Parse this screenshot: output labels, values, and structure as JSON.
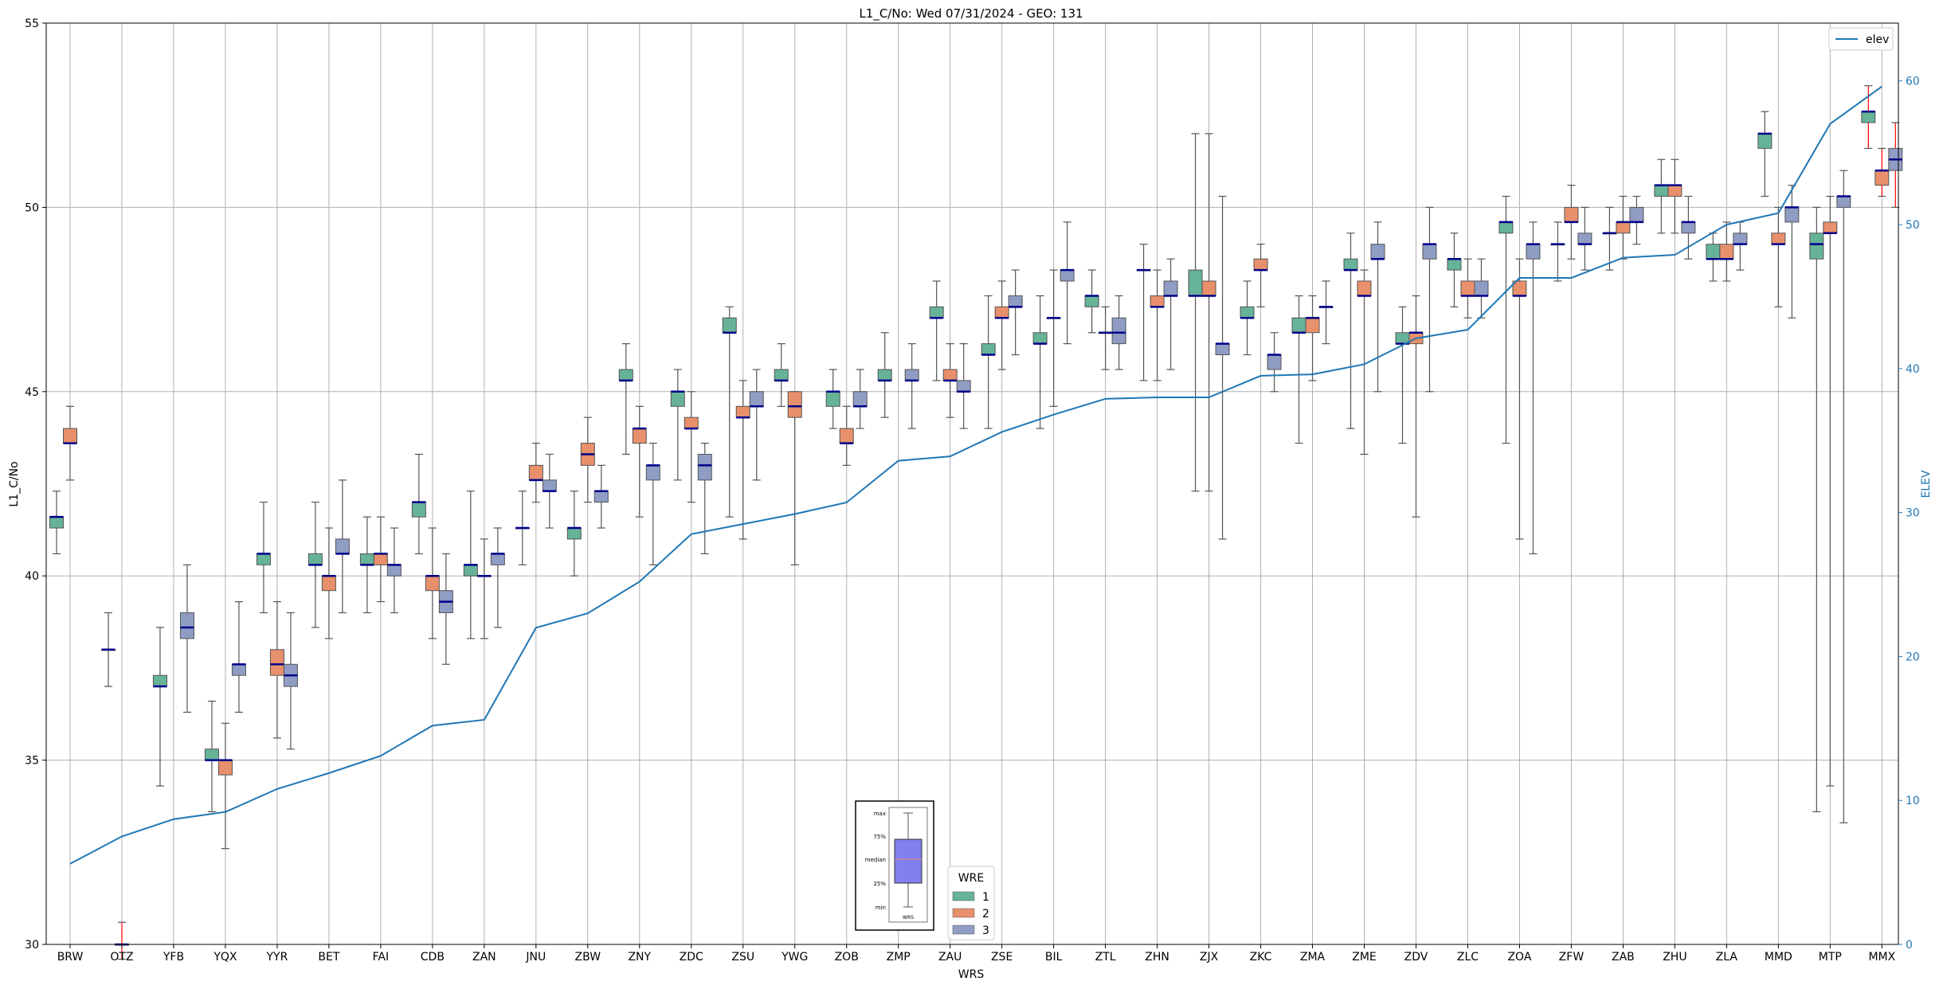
{
  "chart_data": {
    "type": "box",
    "title": "L1_C/No: Wed 07/31/2024 - GEO: 131",
    "xlabel": "WRS",
    "ylabel": "L1_C/No",
    "y2label": "ELEV",
    "ylim": [
      30,
      55
    ],
    "y2lim": [
      0,
      64
    ],
    "yticks": [
      30,
      35,
      40,
      45,
      50,
      55
    ],
    "y2ticks": [
      0,
      10,
      20,
      30,
      40,
      50,
      60
    ],
    "grid": true,
    "categories": [
      "BRW",
      "OTZ",
      "YFB",
      "YQX",
      "YYR",
      "BET",
      "FAI",
      "CDB",
      "ZAN",
      "JNU",
      "ZBW",
      "ZNY",
      "ZDC",
      "ZSU",
      "YWG",
      "ZOB",
      "ZMP",
      "ZAU",
      "ZSE",
      "BIL",
      "ZTL",
      "ZHN",
      "ZJX",
      "ZKC",
      "ZMA",
      "ZME",
      "ZDV",
      "ZLC",
      "ZOA",
      "ZFW",
      "ZAB",
      "ZHU",
      "ZLA",
      "MMD",
      "MTP",
      "MMX"
    ],
    "colors": {
      "wre1": "#66b398",
      "wre2": "#e8906b",
      "wre3": "#8f9cc4",
      "elev": "#1f77b4",
      "median": "#00008b",
      "whisker": "#555555",
      "outlier_whisker": "#ff0000"
    },
    "line_series": {
      "name": "elev",
      "values": [
        5.6,
        7.5,
        8.7,
        9.2,
        10.8,
        11.9,
        13.1,
        15.2,
        15.6,
        22.0,
        23.0,
        25.2,
        28.5,
        29.2,
        29.9,
        30.7,
        33.6,
        33.9,
        35.6,
        36.8,
        37.9,
        38.0,
        38.0,
        39.5,
        39.6,
        40.3,
        42.1,
        42.7,
        46.3,
        46.3,
        47.7,
        47.9,
        50.0,
        50.8,
        57.0,
        59.6
      ]
    },
    "legend_elev": {
      "label": "elev",
      "position": "top-right"
    },
    "legend_wre": {
      "title": "WRE",
      "items": [
        "1",
        "2",
        "3"
      ],
      "position": "bottom-center"
    },
    "box_key": {
      "labels": [
        "max",
        "75%",
        "median",
        "25%",
        "min"
      ],
      "xlabel": "WRS"
    },
    "boxes": [
      {
        "wrs": "BRW",
        "wre": 1,
        "min": 40.6,
        "q1": 41.3,
        "med": 41.6,
        "q3": 41.6,
        "max": 42.3
      },
      {
        "wrs": "BRW",
        "wre": 2,
        "min": 42.6,
        "q1": 43.6,
        "med": 43.6,
        "q3": 44.0,
        "max": 44.6
      },
      {
        "wrs": "OTZ",
        "wre": 1,
        "min": 37.0,
        "q1": 38.0,
        "med": 38.0,
        "q3": 38.0,
        "max": 39.0
      },
      {
        "wrs": "OTZ",
        "wre": 2,
        "min": 29.6,
        "q1": 30.0,
        "med": 30.0,
        "q3": 30.0,
        "max": 30.6,
        "red": true
      },
      {
        "wrs": "YFB",
        "wre": 1,
        "min": 34.3,
        "q1": 37.0,
        "med": 37.0,
        "q3": 37.3,
        "max": 38.6
      },
      {
        "wrs": "YFB",
        "wre": 3,
        "min": 36.3,
        "q1": 38.3,
        "med": 38.6,
        "q3": 39.0,
        "max": 40.3
      },
      {
        "wrs": "YQX",
        "wre": 1,
        "min": 33.6,
        "q1": 35.0,
        "med": 35.0,
        "q3": 35.3,
        "max": 36.6
      },
      {
        "wrs": "YQX",
        "wre": 2,
        "min": 32.6,
        "q1": 34.6,
        "med": 35.0,
        "q3": 35.0,
        "max": 36.0
      },
      {
        "wrs": "YQX",
        "wre": 3,
        "min": 36.3,
        "q1": 37.3,
        "med": 37.6,
        "q3": 37.6,
        "max": 39.3
      },
      {
        "wrs": "YYR",
        "wre": 1,
        "min": 39.0,
        "q1": 40.3,
        "med": 40.6,
        "q3": 40.6,
        "max": 42.0
      },
      {
        "wrs": "YYR",
        "wre": 2,
        "min": 35.6,
        "q1": 37.3,
        "med": 37.6,
        "q3": 38.0,
        "max": 39.3
      },
      {
        "wrs": "YYR",
        "wre": 3,
        "min": 35.3,
        "q1": 37.0,
        "med": 37.3,
        "q3": 37.6,
        "max": 39.0
      },
      {
        "wrs": "BET",
        "wre": 1,
        "min": 38.6,
        "q1": 40.3,
        "med": 40.3,
        "q3": 40.6,
        "max": 42.0
      },
      {
        "wrs": "BET",
        "wre": 2,
        "min": 38.3,
        "q1": 39.6,
        "med": 40.0,
        "q3": 40.0,
        "max": 41.3
      },
      {
        "wrs": "BET",
        "wre": 3,
        "min": 39.0,
        "q1": 40.6,
        "med": 40.6,
        "q3": 41.0,
        "max": 42.6
      },
      {
        "wrs": "FAI",
        "wre": 1,
        "min": 39.0,
        "q1": 40.3,
        "med": 40.3,
        "q3": 40.6,
        "max": 41.6
      },
      {
        "wrs": "FAI",
        "wre": 2,
        "min": 39.3,
        "q1": 40.3,
        "med": 40.6,
        "q3": 40.6,
        "max": 41.6
      },
      {
        "wrs": "FAI",
        "wre": 3,
        "min": 39.0,
        "q1": 40.0,
        "med": 40.3,
        "q3": 40.3,
        "max": 41.3
      },
      {
        "wrs": "CDB",
        "wre": 1,
        "min": 40.6,
        "q1": 41.6,
        "med": 42.0,
        "q3": 42.0,
        "max": 43.3
      },
      {
        "wrs": "CDB",
        "wre": 2,
        "min": 38.3,
        "q1": 39.6,
        "med": 40.0,
        "q3": 40.0,
        "max": 41.3
      },
      {
        "wrs": "CDB",
        "wre": 3,
        "min": 37.6,
        "q1": 39.0,
        "med": 39.3,
        "q3": 39.6,
        "max": 40.6
      },
      {
        "wrs": "ZAN",
        "wre": 1,
        "min": 38.3,
        "q1": 40.0,
        "med": 40.3,
        "q3": 40.3,
        "max": 42.3
      },
      {
        "wrs": "ZAN",
        "wre": 2,
        "min": 38.3,
        "q1": 40.0,
        "med": 40.0,
        "q3": 40.0,
        "max": 41.0
      },
      {
        "wrs": "ZAN",
        "wre": 3,
        "min": 38.6,
        "q1": 40.3,
        "med": 40.6,
        "q3": 40.6,
        "max": 41.3
      },
      {
        "wrs": "JNU",
        "wre": 1,
        "min": 40.3,
        "q1": 41.3,
        "med": 41.3,
        "q3": 41.3,
        "max": 42.3
      },
      {
        "wrs": "JNU",
        "wre": 2,
        "min": 42.0,
        "q1": 42.6,
        "med": 42.6,
        "q3": 43.0,
        "max": 43.6
      },
      {
        "wrs": "JNU",
        "wre": 3,
        "min": 41.3,
        "q1": 42.3,
        "med": 42.3,
        "q3": 42.6,
        "max": 43.3
      },
      {
        "wrs": "ZBW",
        "wre": 1,
        "min": 40.0,
        "q1": 41.0,
        "med": 41.3,
        "q3": 41.3,
        "max": 42.3
      },
      {
        "wrs": "ZBW",
        "wre": 2,
        "min": 42.0,
        "q1": 43.0,
        "med": 43.3,
        "q3": 43.6,
        "max": 44.3
      },
      {
        "wrs": "ZBW",
        "wre": 3,
        "min": 41.3,
        "q1": 42.0,
        "med": 42.3,
        "q3": 42.3,
        "max": 43.0
      },
      {
        "wrs": "ZNY",
        "wre": 1,
        "min": 43.3,
        "q1": 45.3,
        "med": 45.3,
        "q3": 45.6,
        "max": 46.3
      },
      {
        "wrs": "ZNY",
        "wre": 2,
        "min": 41.6,
        "q1": 43.6,
        "med": 44.0,
        "q3": 44.0,
        "max": 44.6
      },
      {
        "wrs": "ZNY",
        "wre": 3,
        "min": 40.3,
        "q1": 42.6,
        "med": 43.0,
        "q3": 43.0,
        "max": 43.6
      },
      {
        "wrs": "ZDC",
        "wre": 1,
        "min": 42.6,
        "q1": 44.6,
        "med": 45.0,
        "q3": 45.0,
        "max": 45.6
      },
      {
        "wrs": "ZDC",
        "wre": 2,
        "min": 42.0,
        "q1": 44.0,
        "med": 44.0,
        "q3": 44.3,
        "max": 45.0
      },
      {
        "wrs": "ZDC",
        "wre": 3,
        "min": 40.6,
        "q1": 42.6,
        "med": 43.0,
        "q3": 43.3,
        "max": 43.6
      },
      {
        "wrs": "ZSU",
        "wre": 1,
        "min": 41.6,
        "q1": 46.6,
        "med": 46.6,
        "q3": 47.0,
        "max": 47.3
      },
      {
        "wrs": "ZSU",
        "wre": 2,
        "min": 41.0,
        "q1": 44.3,
        "med": 44.3,
        "q3": 44.6,
        "max": 45.3
      },
      {
        "wrs": "ZSU",
        "wre": 3,
        "min": 42.6,
        "q1": 44.6,
        "med": 44.6,
        "q3": 45.0,
        "max": 45.6
      },
      {
        "wrs": "YWG",
        "wre": 1,
        "min": 44.6,
        "q1": 45.3,
        "med": 45.3,
        "q3": 45.6,
        "max": 46.3
      },
      {
        "wrs": "YWG",
        "wre": 2,
        "min": 40.3,
        "q1": 44.3,
        "med": 44.6,
        "q3": 45.0,
        "max": 45.0
      },
      {
        "wrs": "ZOB",
        "wre": 1,
        "min": 44.0,
        "q1": 44.6,
        "med": 45.0,
        "q3": 45.0,
        "max": 45.6
      },
      {
        "wrs": "ZOB",
        "wre": 2,
        "min": 43.0,
        "q1": 43.6,
        "med": 43.6,
        "q3": 44.0,
        "max": 44.6
      },
      {
        "wrs": "ZOB",
        "wre": 3,
        "min": 44.0,
        "q1": 44.6,
        "med": 44.6,
        "q3": 45.0,
        "max": 45.6
      },
      {
        "wrs": "ZMP",
        "wre": 1,
        "min": 44.3,
        "q1": 45.3,
        "med": 45.3,
        "q3": 45.6,
        "max": 46.6
      },
      {
        "wrs": "ZMP",
        "wre": 3,
        "min": 44.0,
        "q1": 45.3,
        "med": 45.3,
        "q3": 45.6,
        "max": 46.3
      },
      {
        "wrs": "ZAU",
        "wre": 1,
        "min": 45.3,
        "q1": 47.0,
        "med": 47.0,
        "q3": 47.3,
        "max": 48.0
      },
      {
        "wrs": "ZAU",
        "wre": 2,
        "min": 44.3,
        "q1": 45.3,
        "med": 45.3,
        "q3": 45.6,
        "max": 46.3
      },
      {
        "wrs": "ZAU",
        "wre": 3,
        "min": 44.0,
        "q1": 45.0,
        "med": 45.0,
        "q3": 45.3,
        "max": 46.3
      },
      {
        "wrs": "ZSE",
        "wre": 1,
        "min": 44.0,
        "q1": 46.0,
        "med": 46.0,
        "q3": 46.3,
        "max": 47.6
      },
      {
        "wrs": "ZSE",
        "wre": 2,
        "min": 45.6,
        "q1": 47.0,
        "med": 47.0,
        "q3": 47.3,
        "max": 48.0
      },
      {
        "wrs": "ZSE",
        "wre": 3,
        "min": 46.0,
        "q1": 47.3,
        "med": 47.3,
        "q3": 47.6,
        "max": 48.3
      },
      {
        "wrs": "BIL",
        "wre": 1,
        "min": 44.0,
        "q1": 46.3,
        "med": 46.3,
        "q3": 46.6,
        "max": 47.6
      },
      {
        "wrs": "BIL",
        "wre": 2,
        "min": 44.6,
        "q1": 47.0,
        "med": 47.0,
        "q3": 47.0,
        "max": 48.3
      },
      {
        "wrs": "BIL",
        "wre": 3,
        "min": 46.3,
        "q1": 48.0,
        "med": 48.3,
        "q3": 48.3,
        "max": 49.6
      },
      {
        "wrs": "ZTL",
        "wre": 1,
        "min": 46.6,
        "q1": 47.3,
        "med": 47.6,
        "q3": 47.6,
        "max": 48.3
      },
      {
        "wrs": "ZTL",
        "wre": 2,
        "min": 45.6,
        "q1": 46.6,
        "med": 46.6,
        "q3": 46.6,
        "max": 47.3
      },
      {
        "wrs": "ZTL",
        "wre": 3,
        "min": 45.6,
        "q1": 46.3,
        "med": 46.6,
        "q3": 47.0,
        "max": 47.6
      },
      {
        "wrs": "ZHN",
        "wre": 1,
        "min": 45.3,
        "q1": 48.3,
        "med": 48.3,
        "q3": 48.3,
        "max": 49.0
      },
      {
        "wrs": "ZHN",
        "wre": 2,
        "min": 45.3,
        "q1": 47.3,
        "med": 47.3,
        "q3": 47.6,
        "max": 48.3
      },
      {
        "wrs": "ZHN",
        "wre": 3,
        "min": 45.6,
        "q1": 47.6,
        "med": 47.6,
        "q3": 48.0,
        "max": 48.6
      },
      {
        "wrs": "ZJX",
        "wre": 1,
        "min": 42.3,
        "q1": 47.6,
        "med": 47.6,
        "q3": 48.3,
        "max": 52.0
      },
      {
        "wrs": "ZJX",
        "wre": 2,
        "min": 42.3,
        "q1": 47.6,
        "med": 47.6,
        "q3": 48.0,
        "max": 52.0
      },
      {
        "wrs": "ZJX",
        "wre": 3,
        "min": 41.0,
        "q1": 46.0,
        "med": 46.3,
        "q3": 46.3,
        "max": 50.3
      },
      {
        "wrs": "ZKC",
        "wre": 1,
        "min": 46.0,
        "q1": 47.0,
        "med": 47.0,
        "q3": 47.3,
        "max": 48.0
      },
      {
        "wrs": "ZKC",
        "wre": 2,
        "min": 47.3,
        "q1": 48.3,
        "med": 48.3,
        "q3": 48.6,
        "max": 49.0
      },
      {
        "wrs": "ZKC",
        "wre": 3,
        "min": 45.0,
        "q1": 45.6,
        "med": 46.0,
        "q3": 46.0,
        "max": 46.6
      },
      {
        "wrs": "ZMA",
        "wre": 1,
        "min": 43.6,
        "q1": 46.6,
        "med": 46.6,
        "q3": 47.0,
        "max": 47.6
      },
      {
        "wrs": "ZMA",
        "wre": 2,
        "min": 45.3,
        "q1": 46.6,
        "med": 47.0,
        "q3": 47.0,
        "max": 47.6
      },
      {
        "wrs": "ZMA",
        "wre": 3,
        "min": 46.3,
        "q1": 47.3,
        "med": 47.3,
        "q3": 47.3,
        "max": 48.0
      },
      {
        "wrs": "ZME",
        "wre": 1,
        "min": 44.0,
        "q1": 48.3,
        "med": 48.3,
        "q3": 48.6,
        "max": 49.3
      },
      {
        "wrs": "ZME",
        "wre": 2,
        "min": 43.3,
        "q1": 47.6,
        "med": 47.6,
        "q3": 48.0,
        "max": 48.3
      },
      {
        "wrs": "ZME",
        "wre": 3,
        "min": 45.0,
        "q1": 48.6,
        "med": 48.6,
        "q3": 49.0,
        "max": 49.6
      },
      {
        "wrs": "ZDV",
        "wre": 1,
        "min": 43.6,
        "q1": 46.3,
        "med": 46.3,
        "q3": 46.6,
        "max": 47.3
      },
      {
        "wrs": "ZDV",
        "wre": 2,
        "min": 41.6,
        "q1": 46.3,
        "med": 46.6,
        "q3": 46.6,
        "max": 47.6
      },
      {
        "wrs": "ZDV",
        "wre": 3,
        "min": 45.0,
        "q1": 48.6,
        "med": 49.0,
        "q3": 49.0,
        "max": 50.0
      },
      {
        "wrs": "ZLC",
        "wre": 1,
        "min": 47.3,
        "q1": 48.3,
        "med": 48.6,
        "q3": 48.6,
        "max": 49.3
      },
      {
        "wrs": "ZLC",
        "wre": 2,
        "min": 47.0,
        "q1": 47.6,
        "med": 47.6,
        "q3": 48.0,
        "max": 48.6
      },
      {
        "wrs": "ZLC",
        "wre": 3,
        "min": 47.0,
        "q1": 47.6,
        "med": 47.6,
        "q3": 48.0,
        "max": 48.6
      },
      {
        "wrs": "ZOA",
        "wre": 1,
        "min": 43.6,
        "q1": 49.3,
        "med": 49.6,
        "q3": 49.6,
        "max": 50.3
      },
      {
        "wrs": "ZOA",
        "wre": 2,
        "min": 41.0,
        "q1": 47.6,
        "med": 47.6,
        "q3": 48.0,
        "max": 48.6
      },
      {
        "wrs": "ZOA",
        "wre": 3,
        "min": 40.6,
        "q1": 48.6,
        "med": 49.0,
        "q3": 49.0,
        "max": 49.6
      },
      {
        "wrs": "ZFW",
        "wre": 1,
        "min": 48.0,
        "q1": 49.0,
        "med": 49.0,
        "q3": 49.0,
        "max": 49.6
      },
      {
        "wrs": "ZFW",
        "wre": 2,
        "min": 48.6,
        "q1": 49.6,
        "med": 49.6,
        "q3": 50.0,
        "max": 50.6
      },
      {
        "wrs": "ZFW",
        "wre": 3,
        "min": 48.3,
        "q1": 49.0,
        "med": 49.0,
        "q3": 49.3,
        "max": 50.0
      },
      {
        "wrs": "ZAB",
        "wre": 1,
        "min": 48.3,
        "q1": 49.3,
        "med": 49.3,
        "q3": 49.3,
        "max": 50.0
      },
      {
        "wrs": "ZAB",
        "wre": 2,
        "min": 48.6,
        "q1": 49.3,
        "med": 49.6,
        "q3": 49.6,
        "max": 50.3
      },
      {
        "wrs": "ZAB",
        "wre": 3,
        "min": 49.0,
        "q1": 49.6,
        "med": 49.6,
        "q3": 50.0,
        "max": 50.3
      },
      {
        "wrs": "ZHU",
        "wre": 1,
        "min": 49.3,
        "q1": 50.3,
        "med": 50.6,
        "q3": 50.6,
        "max": 51.3
      },
      {
        "wrs": "ZHU",
        "wre": 2,
        "min": 49.3,
        "q1": 50.3,
        "med": 50.6,
        "q3": 50.6,
        "max": 51.3
      },
      {
        "wrs": "ZHU",
        "wre": 3,
        "min": 48.6,
        "q1": 49.3,
        "med": 49.6,
        "q3": 49.6,
        "max": 50.3
      },
      {
        "wrs": "ZLA",
        "wre": 1,
        "min": 48.0,
        "q1": 48.6,
        "med": 48.6,
        "q3": 49.0,
        "max": 49.3
      },
      {
        "wrs": "ZLA",
        "wre": 2,
        "min": 48.0,
        "q1": 48.6,
        "med": 48.6,
        "q3": 49.0,
        "max": 49.6
      },
      {
        "wrs": "ZLA",
        "wre": 3,
        "min": 48.3,
        "q1": 49.0,
        "med": 49.0,
        "q3": 49.3,
        "max": 49.6
      },
      {
        "wrs": "MMD",
        "wre": 1,
        "min": 50.3,
        "q1": 51.6,
        "med": 52.0,
        "q3": 52.0,
        "max": 52.6
      },
      {
        "wrs": "MMD",
        "wre": 2,
        "min": 47.3,
        "q1": 49.0,
        "med": 49.0,
        "q3": 49.3,
        "max": 50.0
      },
      {
        "wrs": "MMD",
        "wre": 3,
        "min": 47.0,
        "q1": 49.6,
        "med": 50.0,
        "q3": 50.0,
        "max": 50.6
      },
      {
        "wrs": "MTP",
        "wre": 1,
        "min": 33.6,
        "q1": 48.6,
        "med": 49.0,
        "q3": 49.3,
        "max": 50.0
      },
      {
        "wrs": "MTP",
        "wre": 2,
        "min": 34.3,
        "q1": 49.3,
        "med": 49.3,
        "q3": 49.6,
        "max": 50.3
      },
      {
        "wrs": "MTP",
        "wre": 3,
        "min": 33.3,
        "q1": 50.0,
        "med": 50.3,
        "q3": 50.3,
        "max": 51.0
      },
      {
        "wrs": "MMX",
        "wre": 1,
        "min": 51.6,
        "q1": 52.3,
        "med": 52.6,
        "q3": 52.6,
        "max": 53.3,
        "red": true
      },
      {
        "wrs": "MMX",
        "wre": 2,
        "min": 50.3,
        "q1": 50.6,
        "med": 51.0,
        "q3": 51.0,
        "max": 51.6,
        "red": true
      },
      {
        "wrs": "MMX",
        "wre": 3,
        "min": 50.0,
        "q1": 51.0,
        "med": 51.3,
        "q3": 51.6,
        "max": 52.3,
        "red": true
      }
    ]
  }
}
